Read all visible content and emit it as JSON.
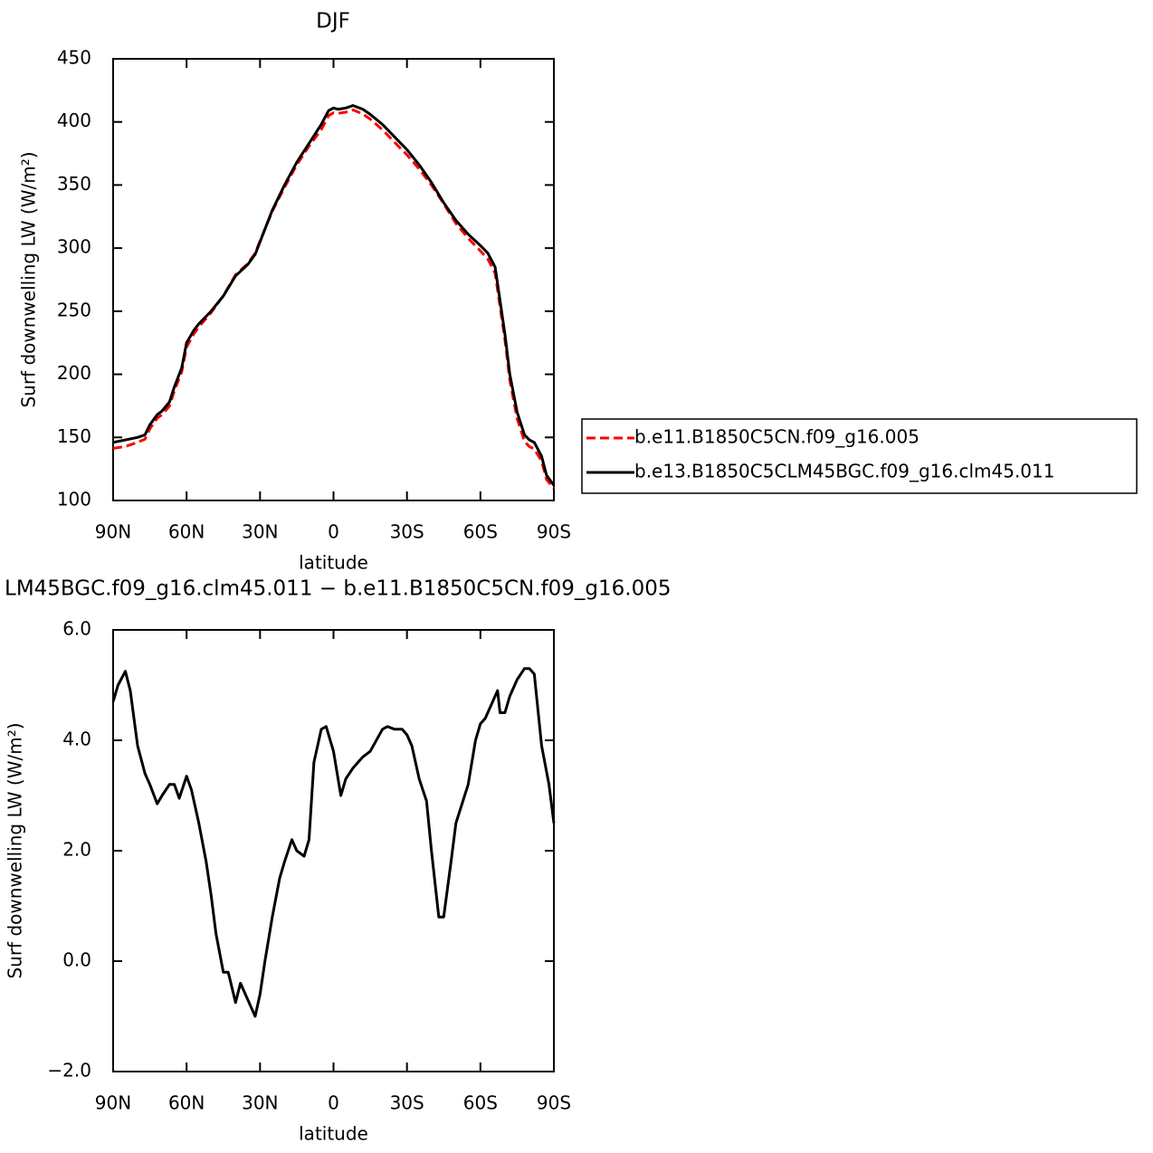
{
  "chart_data": [
    {
      "type": "line",
      "title": "DJF",
      "xlabel": "latitude",
      "ylabel": "Surf downwelling LW (W/m²)",
      "x": [
        90,
        85,
        80,
        77,
        75,
        72,
        70,
        67,
        65,
        62,
        60,
        57,
        55,
        50,
        45,
        40,
        35,
        32,
        30,
        25,
        20,
        15,
        10,
        5,
        2,
        0,
        -2,
        -5,
        -8,
        -12,
        -15,
        -20,
        -25,
        -30,
        -35,
        -40,
        -45,
        -50,
        -55,
        -60,
        -63,
        -66,
        -70,
        -72,
        -75,
        -78,
        -80,
        -82,
        -85,
        -87,
        -90
      ],
      "series": [
        {
          "name": "b.e11.B1850C5CN.f09_g16.005",
          "color": "#ff0000",
          "linestyle": "dashed",
          "values": [
            141.3,
            142.8,
            146.1,
            148.6,
            156.8,
            165.2,
            168,
            174.8,
            186.8,
            201.9,
            221.7,
            232.1,
            237.5,
            248.8,
            262.2,
            278.8,
            287.7,
            296,
            305.6,
            329.2,
            348.2,
            366,
            380.8,
            393.8,
            405,
            407.2,
            406.8,
            407.7,
            409.5,
            406.3,
            402.2,
            393.8,
            383.8,
            373.9,
            362.7,
            350,
            335.2,
            319.5,
            307.8,
            297.7,
            291.4,
            280.2,
            227.5,
            195.2,
            164.9,
            146.7,
            142.7,
            140.8,
            131.1,
            116.6,
            109.5
          ]
        },
        {
          "name": "b.e13.B1850C5CLM45BGC.f09_g16.clm45.011",
          "color": "#000000",
          "linestyle": "solid",
          "values": [
            146,
            148,
            150,
            152,
            160,
            168,
            171,
            178,
            190,
            205,
            225,
            235,
            240,
            250,
            262,
            278,
            287,
            295,
            305,
            330,
            350,
            368,
            383,
            398,
            409,
            411,
            410,
            411,
            413,
            410,
            406,
            398,
            388,
            378,
            366,
            352,
            336,
            322,
            311,
            302,
            296,
            285,
            232,
            200,
            170,
            152,
            148,
            146,
            135,
            120,
            112
          ]
        }
      ],
      "xlim": [
        90,
        -90
      ],
      "xticks": [
        {
          "value": 90,
          "label": "90N"
        },
        {
          "value": 60,
          "label": "60N"
        },
        {
          "value": 30,
          "label": "30N"
        },
        0,
        {
          "value": -30,
          "label": "30S"
        },
        {
          "value": -60,
          "label": "60S"
        },
        {
          "value": -90,
          "label": "90S"
        }
      ],
      "ylim": [
        100,
        450
      ],
      "yticks": [
        100,
        150,
        200,
        250,
        300,
        350,
        400,
        450
      ],
      "legend": "right"
    },
    {
      "type": "line",
      "title": "LM45BGC.f09_g16.clm45.011 − b.e11.B1850C5CN.f09_g16.005",
      "xlabel": "latitude",
      "ylabel": "Surf downwelling LW (W/m²)",
      "x": [
        90,
        88,
        85,
        83,
        80,
        77,
        75,
        72,
        70,
        67,
        65,
        63,
        60,
        58,
        55,
        52,
        50,
        48,
        45,
        43,
        40,
        38,
        35,
        32,
        30,
        28,
        25,
        22,
        20,
        17,
        15,
        12,
        10,
        8,
        5,
        3,
        0,
        -3,
        -5,
        -8,
        -12,
        -15,
        -20,
        -22,
        -25,
        -28,
        -30,
        -32,
        -35,
        -38,
        -40,
        -43,
        -45,
        -48,
        -50,
        -55,
        -58,
        -60,
        -62,
        -65,
        -67,
        -68,
        -70,
        -72,
        -75,
        -78,
        -80,
        -82,
        -85,
        -88,
        -90
      ],
      "series": [
        {
          "color": "#000000",
          "linestyle": "solid",
          "values": [
            4.7,
            5.0,
            5.25,
            4.9,
            3.9,
            3.4,
            3.2,
            2.85,
            3.0,
            3.2,
            3.2,
            2.95,
            3.35,
            3.1,
            2.5,
            1.8,
            1.2,
            0.5,
            -0.2,
            -0.2,
            -0.75,
            -0.4,
            -0.7,
            -1.0,
            -0.6,
            0.0,
            0.8,
            1.5,
            1.8,
            2.2,
            2.0,
            1.9,
            2.2,
            3.6,
            4.2,
            4.25,
            3.8,
            3.0,
            3.3,
            3.5,
            3.7,
            3.8,
            4.2,
            4.25,
            4.2,
            4.2,
            4.1,
            3.9,
            3.3,
            2.9,
            2.0,
            0.8,
            0.8,
            1.8,
            2.5,
            3.2,
            4.0,
            4.3,
            4.4,
            4.7,
            4.9,
            4.5,
            4.5,
            4.8,
            5.1,
            5.3,
            5.3,
            5.2,
            3.9,
            3.2,
            2.5
          ]
        }
      ],
      "xlim": [
        90,
        -90
      ],
      "xticks": [
        {
          "value": 90,
          "label": "90N"
        },
        {
          "value": 60,
          "label": "60N"
        },
        {
          "value": 30,
          "label": "30N"
        },
        0,
        {
          "value": -30,
          "label": "30S"
        },
        {
          "value": -60,
          "label": "60S"
        },
        {
          "value": -90,
          "label": "90S"
        }
      ],
      "ylim": [
        -2,
        6
      ],
      "yticks": [
        {
          "value": -2,
          "label": "−2.0"
        },
        {
          "value": 0,
          "label": "0.0"
        },
        {
          "value": 2,
          "label": "2.0"
        },
        {
          "value": 4,
          "label": "4.0"
        },
        {
          "value": 6,
          "label": "6.0"
        }
      ]
    }
  ]
}
